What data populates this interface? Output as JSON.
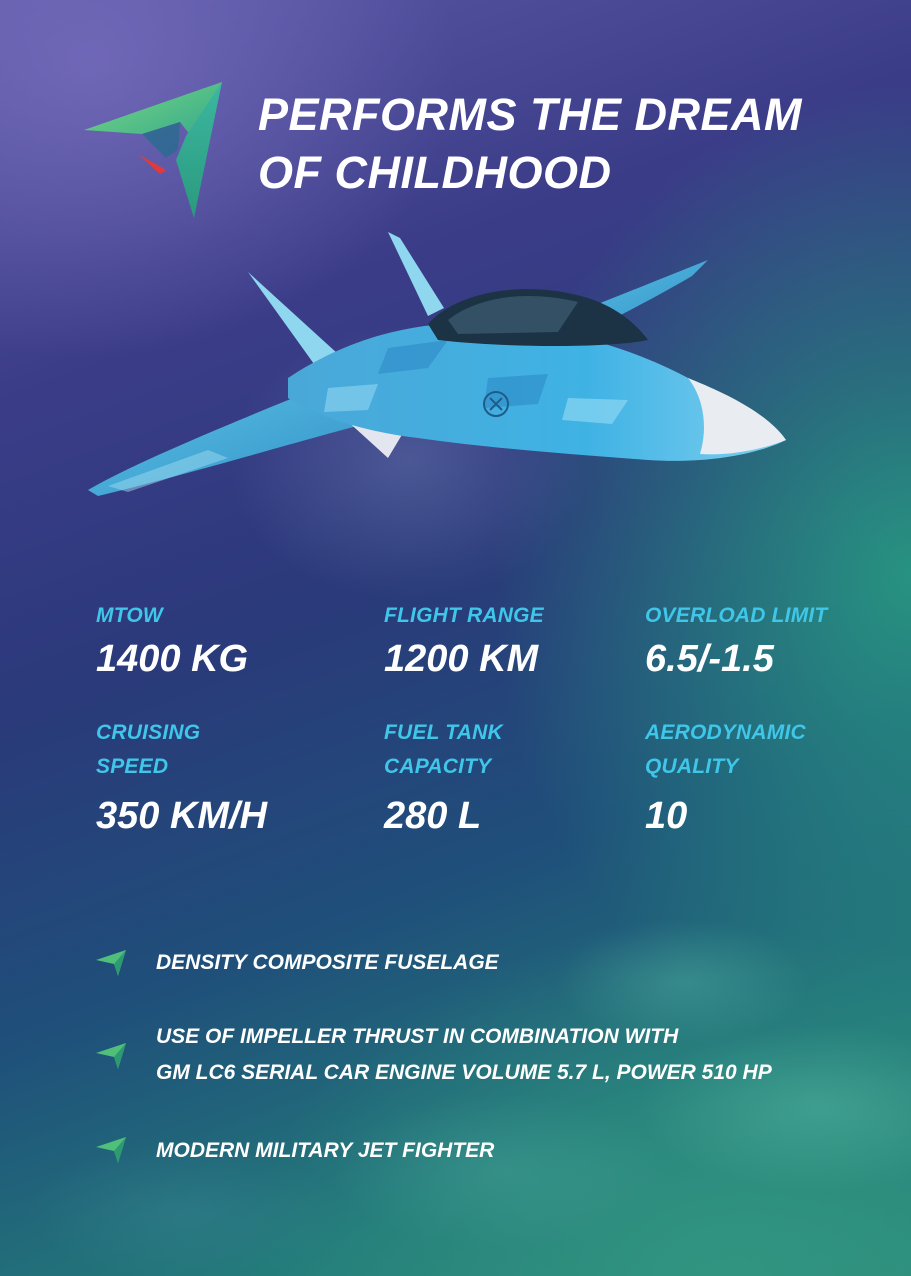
{
  "title": {
    "line1": "PERFORMS THE DREAM",
    "line2": "OF CHILDHOOD"
  },
  "logo": {
    "icon": "arrowhead-logo",
    "colors": [
      "#3bb58a",
      "#6fd47f",
      "#e23a3a"
    ]
  },
  "image": {
    "subject": "blue camouflage jet aircraft"
  },
  "specs": [
    {
      "label": [
        "MTOW"
      ],
      "value": "1400 KG"
    },
    {
      "label": [
        "FLIGHT RANGE"
      ],
      "value": "1200 KM"
    },
    {
      "label": [
        "OVERLOAD LIMIT"
      ],
      "value": "6.5/-1.5"
    },
    {
      "label": [
        "CRUISING",
        "SPEED"
      ],
      "value": "350 KM/H"
    },
    {
      "label": [
        "FUEL TANK",
        "CAPACITY"
      ],
      "value": "280 L"
    },
    {
      "label": [
        "AERODYNAMIC",
        "QUALITY"
      ],
      "value": "10"
    }
  ],
  "features": [
    {
      "icon": "green-arrow-bullet-icon",
      "lines": [
        "DENSITY COMPOSITE FUSELAGE"
      ]
    },
    {
      "icon": "green-arrow-bullet-icon",
      "lines": [
        "USE OF IMPELLER THRUST IN COMBINATION WITH",
        "GM LC6 SERIAL CAR ENGINE VOLUME 5.7 L, POWER 510 HP"
      ]
    },
    {
      "icon": "green-arrow-bullet-icon",
      "lines": [
        "MODERN MILITARY JET FIGHTER"
      ]
    }
  ],
  "colors": {
    "label": "#3fc6e8",
    "value": "#ffffff",
    "accent_green": "#4fbf7a"
  }
}
